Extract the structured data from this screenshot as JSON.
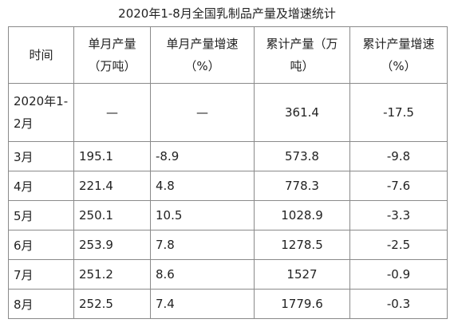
{
  "title": "2020年1-8月全国乳制品产量及增速统计",
  "table": {
    "headers": [
      [
        "时间"
      ],
      [
        "单月产量",
        "（万吨）"
      ],
      [
        "单月产量增速",
        "（%）"
      ],
      [
        "累计产量（万",
        "吨）"
      ],
      [
        "累计产量增速",
        "（%）"
      ]
    ],
    "rows": [
      {
        "cells": [
          [
            "2020年1-",
            "2月"
          ],
          [
            "—"
          ],
          [
            "—"
          ],
          [
            "361.4"
          ],
          [
            "-17.5"
          ]
        ]
      },
      {
        "cells": [
          [
            "3月"
          ],
          [
            "195.1"
          ],
          [
            "-8.9"
          ],
          [
            "573.8"
          ],
          [
            "-9.8"
          ]
        ]
      },
      {
        "cells": [
          [
            "4月"
          ],
          [
            "221.4"
          ],
          [
            "4.8"
          ],
          [
            "778.3"
          ],
          [
            "-7.6"
          ]
        ]
      },
      {
        "cells": [
          [
            "5月"
          ],
          [
            "250.1"
          ],
          [
            "10.5"
          ],
          [
            "1028.9"
          ],
          [
            "-3.3"
          ]
        ]
      },
      {
        "cells": [
          [
            "6月"
          ],
          [
            "253.9"
          ],
          [
            "7.8"
          ],
          [
            "1278.5"
          ],
          [
            "-2.5"
          ]
        ]
      },
      {
        "cells": [
          [
            "7月"
          ],
          [
            "251.2"
          ],
          [
            "8.6"
          ],
          [
            "1527"
          ],
          [
            "-0.9"
          ]
        ]
      },
      {
        "cells": [
          [
            "8月"
          ],
          [
            "252.5"
          ],
          [
            "7.4"
          ],
          [
            "1779.6"
          ],
          [
            "-0.3"
          ]
        ]
      }
    ]
  }
}
